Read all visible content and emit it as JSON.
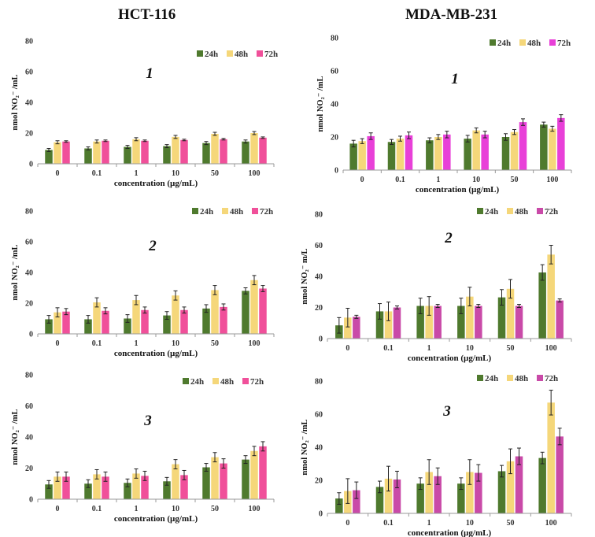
{
  "column_titles": [
    "HCT-116",
    "MDA-MB-231"
  ],
  "colors": {
    "24h": "#4f7a2e",
    "48h": "#f5d77a",
    "72h_left": "#f0509a",
    "72h_right_row1": "#e840d8",
    "72h_right_rows23": "#c94aa8"
  },
  "chart_data": [
    {
      "type": "bar",
      "title": "1",
      "cell_line": "HCT-116",
      "categories": [
        "0",
        "0.1",
        "1",
        "10",
        "50",
        "100"
      ],
      "xlabel": "concentration (µg/mL)",
      "ylabel": "nmol NO₂⁻ /mL",
      "ylim": [
        0,
        80
      ],
      "yticks": [
        "0",
        "20",
        "40",
        "60",
        "80"
      ],
      "grid": false,
      "legend": "top-right",
      "series": [
        {
          "name": "24h",
          "values": [
            9,
            10,
            11,
            11.5,
            13.5,
            14.5
          ],
          "errors": [
            1,
            1,
            1,
            1,
            1,
            1
          ]
        },
        {
          "name": "48h",
          "values": [
            14,
            14.5,
            16,
            17.5,
            19.5,
            20
          ],
          "errors": [
            1,
            1,
            1,
            1,
            1,
            1
          ]
        },
        {
          "name": "72h",
          "values": [
            14.5,
            15,
            15,
            15.5,
            16,
            17
          ],
          "errors": [
            0.5,
            0.5,
            0.5,
            0.5,
            0.5,
            0.5
          ]
        }
      ]
    },
    {
      "type": "bar",
      "title": "1",
      "cell_line": "MDA-MB-231",
      "categories": [
        "0",
        "0.1",
        "1",
        "10",
        "50",
        "100"
      ],
      "xlabel": "concentration (µg/mL)",
      "ylabel": "nmol NO₂⁻ /mL",
      "ylim": [
        0,
        80
      ],
      "yticks": [
        "0",
        "20",
        "40",
        "60",
        "80"
      ],
      "grid": false,
      "legend": "top-right",
      "series": [
        {
          "name": "24h",
          "values": [
            16,
            17,
            18,
            19,
            20,
            27.5
          ],
          "errors": [
            2,
            1.5,
            1.5,
            2,
            2,
            1.5
          ]
        },
        {
          "name": "48h",
          "values": [
            17.5,
            19,
            20,
            24,
            23,
            25
          ],
          "errors": [
            1.5,
            1.5,
            1.5,
            1.5,
            1.5,
            1.5
          ]
        },
        {
          "name": "72h",
          "values": [
            20.5,
            21,
            21.5,
            21.5,
            29,
            31.5
          ],
          "errors": [
            2,
            2,
            2,
            2,
            2,
            2
          ]
        }
      ]
    },
    {
      "type": "bar",
      "title": "2",
      "cell_line": "HCT-116",
      "categories": [
        "0",
        "0.1",
        "1",
        "10",
        "50",
        "100"
      ],
      "xlabel": "concentration (µg/mL)",
      "ylabel": "nmol NO₂⁻ /mL",
      "ylim": [
        0,
        80
      ],
      "yticks": [
        "0",
        "20",
        "40",
        "60",
        "80"
      ],
      "grid": false,
      "legend": "top-right",
      "series": [
        {
          "name": "24h",
          "values": [
            9.5,
            9.5,
            10,
            12,
            16.5,
            28
          ],
          "errors": [
            2.5,
            2.5,
            2.5,
            2.5,
            2.5,
            2
          ]
        },
        {
          "name": "48h",
          "values": [
            14,
            20.5,
            22,
            25,
            28.5,
            35
          ],
          "errors": [
            3,
            3,
            3,
            3,
            3,
            3
          ]
        },
        {
          "name": "72h",
          "values": [
            14.5,
            15,
            15.5,
            15.5,
            17.5,
            29.5
          ],
          "errors": [
            2,
            2,
            2,
            2,
            2,
            2
          ]
        }
      ]
    },
    {
      "type": "bar",
      "title": "2",
      "cell_line": "MDA-MB-231",
      "categories": [
        "0",
        "0.1",
        "1",
        "10",
        "50",
        "100"
      ],
      "xlabel": "concentration (µg/mL)",
      "ylabel": "nmol NO₂⁻ m/L",
      "ylim": [
        0,
        80
      ],
      "yticks": [
        "0",
        "20",
        "40",
        "60",
        "80"
      ],
      "grid": false,
      "legend": "top-right",
      "series": [
        {
          "name": "24h",
          "values": [
            8.5,
            17.5,
            21,
            21,
            26.5,
            42.5
          ],
          "errors": [
            5,
            5,
            5,
            5,
            5,
            5
          ]
        },
        {
          "name": "48h",
          "values": [
            13.5,
            17.5,
            21,
            27,
            32,
            54
          ],
          "errors": [
            6,
            6,
            6,
            6,
            6,
            6
          ]
        },
        {
          "name": "72h",
          "values": [
            14,
            20,
            21,
            21,
            21,
            24.5
          ],
          "errors": [
            1,
            1,
            1,
            1,
            1,
            1
          ]
        }
      ]
    },
    {
      "type": "bar",
      "title": "3",
      "cell_line": "HCT-116",
      "categories": [
        "0",
        "0.1",
        "1",
        "10",
        "50",
        "100"
      ],
      "xlabel": "concentration (µg/mL)",
      "ylabel": "nmol NO₂⁻ /mL",
      "ylim": [
        0,
        80
      ],
      "yticks": [
        "0",
        "20",
        "40",
        "60",
        "80"
      ],
      "grid": false,
      "legend": "top-right",
      "series": [
        {
          "name": "24h",
          "values": [
            9.5,
            10,
            10.5,
            11.5,
            20.5,
            25.5
          ],
          "errors": [
            2.5,
            2.5,
            2.5,
            2.5,
            2.5,
            2.5
          ]
        },
        {
          "name": "48h",
          "values": [
            14.5,
            16,
            16.5,
            22.5,
            27,
            31
          ],
          "errors": [
            3,
            3,
            3,
            3,
            3,
            3
          ]
        },
        {
          "name": "72h",
          "values": [
            14.5,
            14.5,
            15,
            15.5,
            23,
            34
          ],
          "errors": [
            3,
            3,
            3,
            3,
            3,
            3
          ]
        }
      ]
    },
    {
      "type": "bar",
      "title": "3",
      "cell_line": "MDA-MB-231",
      "categories": [
        "0",
        "0.1",
        "1",
        "10",
        "50",
        "100"
      ],
      "xlabel": "concentration (µg/mL)",
      "ylabel": "nmol NO₂⁻ /mL",
      "ylim": [
        0,
        80
      ],
      "yticks": [
        "0",
        "20",
        "40",
        "60",
        "80"
      ],
      "grid": false,
      "legend": "top-right",
      "series": [
        {
          "name": "24h",
          "values": [
            9,
            16,
            18,
            18,
            25.5,
            33.5
          ],
          "errors": [
            3.5,
            3.5,
            3.5,
            3.5,
            3.5,
            3.5
          ]
        },
        {
          "name": "48h",
          "values": [
            13.5,
            21,
            25,
            25,
            31.5,
            67
          ],
          "errors": [
            7.5,
            7.5,
            7.5,
            7.5,
            7.5,
            7.5
          ]
        },
        {
          "name": "72h",
          "values": [
            14,
            20.5,
            22.5,
            24.5,
            34.5,
            46.5
          ],
          "errors": [
            5,
            5,
            5,
            5,
            5,
            5
          ]
        }
      ]
    }
  ]
}
